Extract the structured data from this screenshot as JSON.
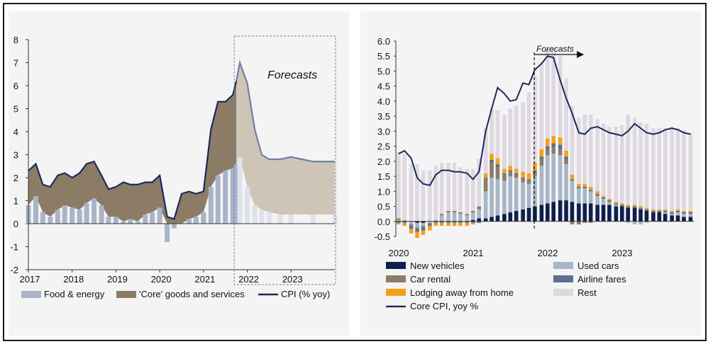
{
  "chart_data": [
    {
      "type": "area",
      "title": "",
      "annotation": "Forecasts",
      "ylim": [
        -2,
        8
      ],
      "y_ticks": [
        "8",
        "7",
        "6",
        "5",
        "4",
        "3",
        "2",
        "1",
        "0",
        "-1",
        "-2"
      ],
      "x_ticks": [
        "2017",
        "2018",
        "2019",
        "2020",
        "2021",
        "2022",
        "2023"
      ],
      "x_start": 2017.0,
      "x_end": 2024.0,
      "forecast_start": 2021.75,
      "grid": false,
      "legend_position": "bottom",
      "legend": [
        {
          "name": "Food & energy",
          "color": "#a9b3c9"
        },
        {
          "name": "'Core' goods and services",
          "color": "#8c7b65"
        },
        {
          "name": "CPI (% yoy)",
          "color": "#1b2a5c"
        }
      ],
      "series": [
        {
          "name": "Food & energy",
          "kind": "stacked-area",
          "x": [
            2017.0,
            2017.17,
            2017.33,
            2017.5,
            2017.67,
            2017.83,
            2018.0,
            2018.17,
            2018.33,
            2018.5,
            2018.67,
            2018.83,
            2019.0,
            2019.17,
            2019.33,
            2019.5,
            2019.67,
            2019.83,
            2020.0,
            2020.17,
            2020.33,
            2020.5,
            2020.67,
            2020.83,
            2021.0,
            2021.17,
            2021.33,
            2021.5,
            2021.67,
            2021.75,
            2021.83,
            2022.0,
            2022.17,
            2022.33,
            2022.5,
            2022.75,
            2023.0,
            2023.5,
            2024.0
          ],
          "values": [
            0.8,
            1.2,
            0.5,
            0.3,
            0.6,
            0.8,
            0.7,
            0.6,
            0.9,
            1.1,
            0.8,
            0.3,
            0.3,
            0.1,
            0.2,
            0.1,
            0.4,
            0.5,
            0.7,
            -0.8,
            -0.2,
            0.0,
            0.2,
            0.3,
            0.5,
            1.6,
            2.1,
            2.3,
            2.4,
            2.6,
            2.9,
            1.6,
            0.8,
            0.6,
            0.5,
            0.4,
            0.4,
            0.4,
            0.4
          ]
        },
        {
          "name": "'Core' goods and services",
          "kind": "stacked-area",
          "x": [
            2017.0,
            2017.17,
            2017.33,
            2017.5,
            2017.67,
            2017.83,
            2018.0,
            2018.17,
            2018.33,
            2018.5,
            2018.67,
            2018.83,
            2019.0,
            2019.17,
            2019.33,
            2019.5,
            2019.67,
            2019.83,
            2020.0,
            2020.17,
            2020.33,
            2020.5,
            2020.67,
            2020.83,
            2021.0,
            2021.17,
            2021.33,
            2021.5,
            2021.67,
            2021.75,
            2021.83,
            2022.0,
            2022.17,
            2022.33,
            2022.5,
            2022.75,
            2023.0,
            2023.5,
            2024.0
          ],
          "values": [
            1.5,
            1.4,
            1.2,
            1.3,
            1.5,
            1.4,
            1.3,
            1.6,
            1.7,
            1.6,
            1.3,
            1.2,
            1.3,
            1.7,
            1.5,
            1.6,
            1.4,
            1.3,
            1.4,
            1.1,
            0.4,
            1.3,
            1.2,
            1.0,
            0.9,
            2.5,
            3.2,
            3.0,
            3.2,
            3.6,
            4.1,
            4.5,
            3.3,
            2.4,
            2.3,
            2.4,
            2.5,
            2.3,
            2.3
          ]
        },
        {
          "name": "CPI (% yoy)",
          "kind": "line",
          "x": [
            2017.0,
            2017.17,
            2017.33,
            2017.5,
            2017.67,
            2017.83,
            2018.0,
            2018.17,
            2018.33,
            2018.5,
            2018.67,
            2018.83,
            2019.0,
            2019.17,
            2019.33,
            2019.5,
            2019.67,
            2019.83,
            2020.0,
            2020.17,
            2020.33,
            2020.5,
            2020.67,
            2020.83,
            2021.0,
            2021.17,
            2021.33,
            2021.5,
            2021.67,
            2021.75,
            2021.83,
            2022.0,
            2022.17,
            2022.33,
            2022.5,
            2022.75,
            2023.0,
            2023.5,
            2024.0
          ],
          "values": [
            2.3,
            2.6,
            1.7,
            1.6,
            2.1,
            2.2,
            2.0,
            2.2,
            2.6,
            2.7,
            2.1,
            1.5,
            1.6,
            1.8,
            1.7,
            1.7,
            1.8,
            1.8,
            2.1,
            0.3,
            0.2,
            1.3,
            1.4,
            1.3,
            1.4,
            4.1,
            5.3,
            5.3,
            5.6,
            6.2,
            7.0,
            6.1,
            4.1,
            3.0,
            2.8,
            2.8,
            2.9,
            2.7,
            2.7
          ]
        }
      ]
    },
    {
      "type": "bar",
      "title": "",
      "annotation": "Forecasts",
      "ylim": [
        -0.5,
        6.0
      ],
      "y_ticks": [
        "6.0",
        "5.5",
        "5.0",
        "4.5",
        "4.0",
        "3.5",
        "3.0",
        "2.5",
        "2.0",
        "1.5",
        "1.0",
        "0.5",
        "0.0",
        "-0.5"
      ],
      "x_ticks": [
        "2020",
        "2021",
        "2022",
        "2023"
      ],
      "x_start": 2020.0,
      "x_end": 2024.0,
      "forecast_start": 2021.83,
      "grid": false,
      "legend_position": "bottom",
      "legend": [
        {
          "name": "New vehicles",
          "color": "#0d1f4d"
        },
        {
          "name": "Used cars",
          "color": "#a7b6c8"
        },
        {
          "name": "Car rental",
          "color": "#8b7d6b"
        },
        {
          "name": "Airline fares",
          "color": "#5d6e92"
        },
        {
          "name": "Lodging away from home",
          "color": "#f4a01a"
        },
        {
          "name": "Rest",
          "color": "#ded8e1"
        },
        {
          "name": "Core CPI, yoy %",
          "color": "#1b2a5c"
        }
      ],
      "x": [
        2020.0,
        2020.08,
        2020.17,
        2020.25,
        2020.33,
        2020.42,
        2020.5,
        2020.58,
        2020.67,
        2020.75,
        2020.83,
        2020.92,
        2021.0,
        2021.08,
        2021.17,
        2021.25,
        2021.33,
        2021.42,
        2021.5,
        2021.58,
        2021.67,
        2021.75,
        2021.83,
        2021.92,
        2022.0,
        2022.08,
        2022.17,
        2022.25,
        2022.33,
        2022.42,
        2022.5,
        2022.58,
        2022.67,
        2022.75,
        2022.83,
        2022.92,
        2023.0,
        2023.08,
        2023.17,
        2023.25,
        2023.33,
        2023.42,
        2023.5,
        2023.58,
        2023.67,
        2023.75,
        2023.83,
        2023.92
      ],
      "series": [
        {
          "name": "New vehicles",
          "values": [
            0.0,
            0.0,
            0.0,
            -0.05,
            -0.05,
            0.0,
            0.0,
            0.0,
            0.0,
            0.0,
            0.0,
            0.0,
            0.05,
            0.1,
            0.1,
            0.15,
            0.2,
            0.25,
            0.3,
            0.35,
            0.4,
            0.45,
            0.5,
            0.55,
            0.6,
            0.65,
            0.7,
            0.7,
            0.65,
            0.6,
            0.6,
            0.6,
            0.55,
            0.55,
            0.55,
            0.5,
            0.5,
            0.45,
            0.45,
            0.4,
            0.35,
            0.3,
            0.3,
            0.25,
            0.2,
            0.2,
            0.15,
            0.15
          ]
        },
        {
          "name": "Used cars",
          "values": [
            0.05,
            0.05,
            -0.1,
            -0.15,
            -0.1,
            -0.05,
            0.05,
            0.2,
            0.3,
            0.3,
            0.25,
            0.2,
            0.25,
            0.3,
            0.9,
            1.3,
            1.2,
            1.1,
            1.2,
            1.1,
            0.9,
            0.8,
            1.0,
            1.3,
            1.6,
            1.6,
            1.5,
            1.2,
            0.7,
            0.5,
            0.5,
            0.4,
            0.3,
            0.2,
            0.1,
            0.05,
            0.0,
            -0.05,
            -0.1,
            -0.1,
            -0.05,
            0.0,
            0.0,
            0.05,
            0.05,
            0.1,
            0.1,
            0.1
          ]
        },
        {
          "name": "Car rental",
          "values": [
            0.05,
            0.0,
            -0.05,
            -0.05,
            -0.05,
            -0.05,
            0.0,
            0.05,
            0.05,
            0.05,
            0.05,
            0.05,
            0.05,
            0.1,
            0.4,
            0.5,
            0.4,
            0.2,
            0.15,
            0.1,
            0.1,
            0.1,
            0.15,
            0.2,
            0.2,
            0.2,
            0.2,
            0.15,
            -0.1,
            -0.1,
            -0.05,
            -0.05,
            0.0,
            0.0,
            0.0,
            0.0,
            0.0,
            0.0,
            0.0,
            0.0,
            0.0,
            0.0,
            0.0,
            0.0,
            0.0,
            0.0,
            0.0,
            0.0
          ]
        },
        {
          "name": "Airline fares",
          "values": [
            -0.05,
            -0.05,
            -0.1,
            -0.1,
            -0.1,
            -0.05,
            -0.05,
            -0.05,
            -0.05,
            -0.05,
            -0.05,
            -0.05,
            -0.05,
            -0.05,
            0.05,
            0.1,
            0.1,
            0.05,
            0.05,
            0.05,
            0.05,
            0.05,
            0.05,
            0.1,
            0.1,
            0.15,
            0.15,
            0.1,
            0.05,
            0.05,
            0.05,
            0.05,
            0.05,
            0.05,
            0.05,
            0.05,
            0.05,
            0.05,
            0.05,
            0.05,
            0.05,
            0.05,
            0.05,
            0.05,
            0.05,
            0.05,
            0.05,
            0.05
          ]
        },
        {
          "name": "Lodging away from home",
          "values": [
            -0.05,
            -0.1,
            -0.15,
            -0.2,
            -0.15,
            -0.15,
            -0.1,
            -0.1,
            -0.1,
            -0.1,
            -0.1,
            -0.1,
            -0.05,
            0.0,
            0.15,
            0.2,
            0.2,
            0.15,
            0.15,
            0.15,
            0.2,
            0.2,
            0.25,
            0.25,
            0.25,
            0.25,
            0.25,
            0.2,
            0.15,
            0.1,
            0.1,
            0.1,
            0.1,
            0.05,
            0.05,
            0.05,
            0.05,
            0.05,
            0.05,
            0.05,
            0.05,
            0.05,
            0.05,
            0.05,
            0.05,
            0.05,
            0.05,
            0.05
          ]
        },
        {
          "name": "Rest",
          "values": [
            2.2,
            2.2,
            1.9,
            1.9,
            1.7,
            1.7,
            1.8,
            1.7,
            1.6,
            1.6,
            1.5,
            1.5,
            1.4,
            1.6,
            1.5,
            1.5,
            1.6,
            1.8,
            1.9,
            2.1,
            2.3,
            2.7,
            2.9,
            2.9,
            3.0,
            2.9,
            2.7,
            2.4,
            2.3,
            2.2,
            2.3,
            2.4,
            2.4,
            2.4,
            2.4,
            2.5,
            2.6,
            3.0,
            2.9,
            2.8,
            2.8,
            2.7,
            2.7,
            2.7,
            2.8,
            2.7,
            2.7,
            2.6
          ]
        }
      ],
      "line": {
        "name": "Core CPI, yoy %",
        "values": [
          2.25,
          2.35,
          2.1,
          1.45,
          1.25,
          1.2,
          1.55,
          1.7,
          1.7,
          1.65,
          1.65,
          1.6,
          1.4,
          1.65,
          3.0,
          3.75,
          4.45,
          4.25,
          4.0,
          4.05,
          4.6,
          4.55,
          5.05,
          5.25,
          5.5,
          5.45,
          4.7,
          4.1,
          3.6,
          2.95,
          2.9,
          3.1,
          3.15,
          3.05,
          2.95,
          2.9,
          2.85,
          3.0,
          3.25,
          3.1,
          2.95,
          2.9,
          2.95,
          3.05,
          3.1,
          3.05,
          2.95,
          2.9
        ]
      }
    }
  ]
}
